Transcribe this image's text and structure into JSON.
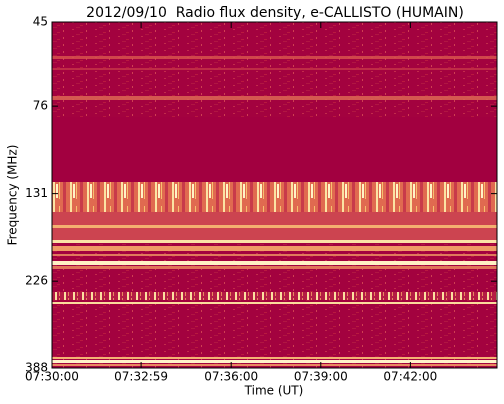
{
  "chart_data": {
    "type": "spectrogram",
    "title": "2012/09/10  Radio flux density, e-CALLISTO (HUMAIN)",
    "x_label": "Time (UT)",
    "y_label": "Frequency (MHz)",
    "xlim": [
      "07:30:00",
      "07:44:54"
    ],
    "xticks": [
      "07:30:00",
      "07:32:59",
      "07:36:00",
      "07:39:00",
      "07:42:00"
    ],
    "ylim": [
      388,
      45
    ],
    "yticks": [
      45,
      76,
      131,
      226,
      388
    ],
    "y_log": true
  }
}
